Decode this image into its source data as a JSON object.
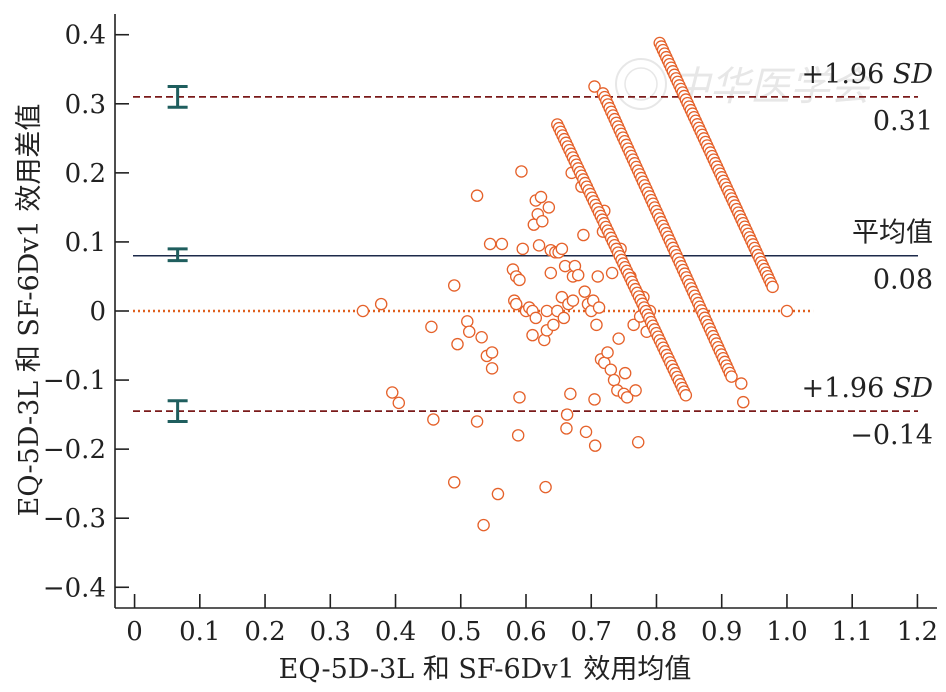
{
  "chart_data": {
    "type": "scatter",
    "xlabel": "EQ-5D-3L 和 SF-6Dv1 效用均值",
    "ylabel": "EQ-5D-3L 和 SF-6Dv1 效用差值",
    "xlim": [
      -0.03,
      1.23
    ],
    "ylim": [
      -0.43,
      0.43
    ],
    "x_ticks": [
      0,
      0.1,
      0.2,
      0.3,
      0.4,
      0.5,
      0.6,
      0.7,
      0.8,
      0.9,
      1.0,
      1.1,
      1.2
    ],
    "x_tick_labels": [
      "0",
      "0.1",
      "0.2",
      "0.3",
      "0.4",
      "0.5",
      "0.6",
      "0.7",
      "0.8",
      "0.9",
      "1.0",
      "1.1",
      "1.2"
    ],
    "y_ticks": [
      0.4,
      0.3,
      0.2,
      0.1,
      0,
      -0.1,
      -0.2,
      -0.3,
      -0.4
    ],
    "y_tick_labels": [
      "0.4",
      "0.3",
      "0.2",
      "0.1",
      "0",
      "−0.1",
      "−0.2",
      "−0.3",
      "−0.4"
    ],
    "grid": false,
    "reference_lines": [
      {
        "id": "upper",
        "value": 0.31,
        "style": "dashed",
        "color": "#7a1a1a",
        "label": "+1.96 SD",
        "value_label": "0.31"
      },
      {
        "id": "mean",
        "value": 0.08,
        "style": "solid",
        "color": "#1c2a4a",
        "label": "平均值",
        "value_label": "0.08"
      },
      {
        "id": "zero",
        "value": 0,
        "style": "dotted",
        "color": "#e0601e"
      },
      {
        "id": "lower",
        "value": -0.145,
        "style": "dashed",
        "color": "#7a1a1a",
        "label": "+1.96 SD",
        "value_label": "−0.14"
      }
    ],
    "error_bars": [
      {
        "x": 0.066,
        "center": 0.31,
        "low": 0.295,
        "high": 0.325
      },
      {
        "x": 0.066,
        "center": 0.08,
        "low": 0.073,
        "high": 0.09
      },
      {
        "x": 0.066,
        "center": -0.145,
        "low": -0.16,
        "high": -0.13
      }
    ],
    "bands": [
      {
        "x_start": 0.805,
        "y_start": 0.388,
        "x_end": 0.978,
        "y_end": 0.035,
        "n": 70
      },
      {
        "x_start": 0.718,
        "y_start": 0.315,
        "x_end": 0.915,
        "y_end": -0.095,
        "n": 78
      },
      {
        "x_start": 0.648,
        "y_start": 0.27,
        "x_end": 0.845,
        "y_end": -0.122,
        "n": 75
      }
    ],
    "points": [
      [
        0.35,
        0.0
      ],
      [
        0.378,
        0.01
      ],
      [
        0.395,
        -0.118
      ],
      [
        0.405,
        -0.133
      ],
      [
        0.458,
        -0.157
      ],
      [
        0.455,
        -0.023
      ],
      [
        0.49,
        0.037
      ],
      [
        0.49,
        -0.248
      ],
      [
        0.495,
        -0.048
      ],
      [
        0.51,
        -0.015
      ],
      [
        0.513,
        -0.03
      ],
      [
        0.525,
        0.167
      ],
      [
        0.525,
        -0.16
      ],
      [
        0.532,
        -0.038
      ],
      [
        0.535,
        -0.31
      ],
      [
        0.54,
        -0.065
      ],
      [
        0.545,
        0.097
      ],
      [
        0.548,
        -0.06
      ],
      [
        0.548,
        -0.083
      ],
      [
        0.557,
        -0.265
      ],
      [
        0.563,
        0.097
      ],
      [
        0.58,
        0.06
      ],
      [
        0.582,
        0.015
      ],
      [
        0.585,
        0.01
      ],
      [
        0.585,
        0.05
      ],
      [
        0.588,
        -0.18
      ],
      [
        0.59,
        0.045
      ],
      [
        0.593,
        0.202
      ],
      [
        0.59,
        -0.125
      ],
      [
        0.595,
        0.09
      ],
      [
        0.6,
        0.0
      ],
      [
        0.605,
        0.005
      ],
      [
        0.61,
        -0.035
      ],
      [
        0.61,
        0.0
      ],
      [
        0.612,
        0.125
      ],
      [
        0.615,
        0.16
      ],
      [
        0.615,
        -0.01
      ],
      [
        0.618,
        0.14
      ],
      [
        0.62,
        0.095
      ],
      [
        0.623,
        0.165
      ],
      [
        0.625,
        0.13
      ],
      [
        0.628,
        -0.042
      ],
      [
        0.63,
        -0.255
      ],
      [
        0.632,
        0.0
      ],
      [
        0.632,
        -0.028
      ],
      [
        0.635,
        0.15
      ],
      [
        0.638,
        0.088
      ],
      [
        0.638,
        0.055
      ],
      [
        0.642,
        -0.02
      ],
      [
        0.645,
        0.085
      ],
      [
        0.648,
        0.0
      ],
      [
        0.65,
        0.085
      ],
      [
        0.655,
        0.09
      ],
      [
        0.655,
        0.02
      ],
      [
        0.658,
        -0.01
      ],
      [
        0.66,
        0.065
      ],
      [
        0.662,
        -0.17
      ],
      [
        0.663,
        -0.15
      ],
      [
        0.665,
        0.01
      ],
      [
        0.668,
        -0.12
      ],
      [
        0.67,
        0.2
      ],
      [
        0.672,
        0.05
      ],
      [
        0.672,
        0.015
      ],
      [
        0.675,
        0.065
      ],
      [
        0.68,
        0.052
      ],
      [
        0.685,
        0.18
      ],
      [
        0.688,
        0.11
      ],
      [
        0.69,
        0.028
      ],
      [
        0.692,
        -0.175
      ],
      [
        0.695,
        0.01
      ],
      [
        0.7,
        0.0
      ],
      [
        0.703,
        0.015
      ],
      [
        0.705,
        0.325
      ],
      [
        0.705,
        -0.128
      ],
      [
        0.706,
        -0.195
      ],
      [
        0.708,
        -0.02
      ],
      [
        0.71,
        0.05
      ],
      [
        0.712,
        0.005
      ],
      [
        0.715,
        -0.07
      ],
      [
        0.718,
        0.115
      ],
      [
        0.72,
        0.145
      ],
      [
        0.72,
        -0.075
      ],
      [
        0.725,
        -0.06
      ],
      [
        0.73,
        -0.085
      ],
      [
        0.732,
        0.055
      ],
      [
        0.735,
        -0.1
      ],
      [
        0.74,
        -0.115
      ],
      [
        0.742,
        -0.04
      ],
      [
        0.745,
        0.09
      ],
      [
        0.75,
        -0.12
      ],
      [
        0.752,
        -0.09
      ],
      [
        0.755,
        -0.125
      ],
      [
        0.76,
        0.05
      ],
      [
        0.765,
        -0.02
      ],
      [
        0.768,
        -0.115
      ],
      [
        0.772,
        -0.19
      ],
      [
        0.775,
        -0.008
      ],
      [
        0.78,
        0.02
      ],
      [
        0.785,
        -0.03
      ],
      [
        0.79,
        0.0
      ],
      [
        0.933,
        -0.132
      ],
      [
        0.93,
        -0.105
      ],
      [
        1.0,
        0.0
      ]
    ]
  },
  "watermark": {
    "text": "中华医学会"
  }
}
